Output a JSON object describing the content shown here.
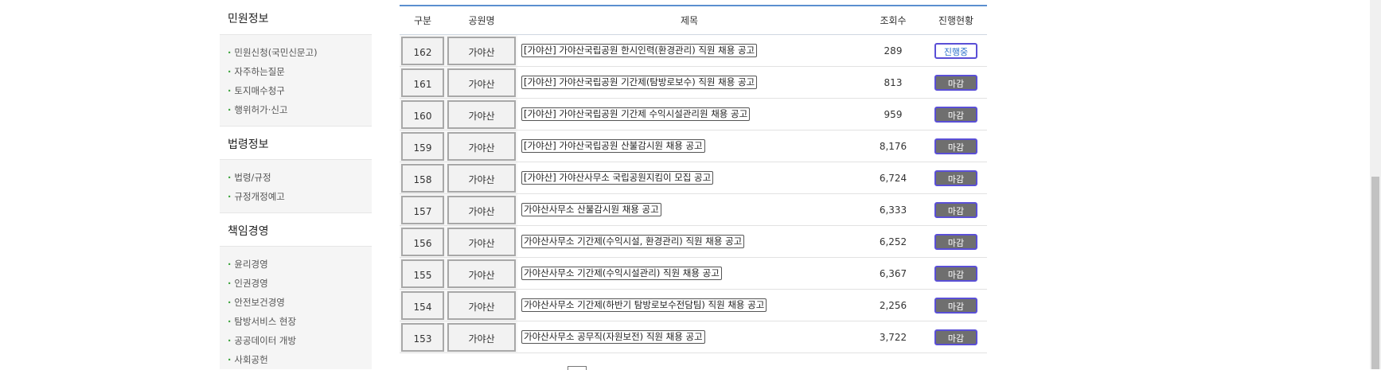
{
  "sidebar": {
    "sections": [
      {
        "title": "민원정보",
        "items": [
          "민원신청(국민신문고)",
          "자주하는질문",
          "토지매수청구",
          "행위허가·신고"
        ]
      },
      {
        "title": "법령정보",
        "items": [
          "법령/규정",
          "규정개정예고"
        ]
      },
      {
        "title": "책임경영",
        "items": [
          "윤리경영",
          "인권경영",
          "안전보건경영",
          "탐방서비스 현장",
          "공공데이터 개방",
          "사회공헌"
        ]
      }
    ]
  },
  "table": {
    "headers": [
      "구분",
      "공원명",
      "제목",
      "조회수",
      "진행현황"
    ],
    "rows": [
      {
        "no": "162",
        "park": "가야산",
        "title": "[가야산] 가야산국립공원 한시인력(환경관리) 직원 채용 공고",
        "views": "289",
        "status": "진행중"
      },
      {
        "no": "161",
        "park": "가야산",
        "title": "[가야산] 가야산국립공원 기간제(탐방로보수) 직원 채용 공고",
        "views": "813",
        "status": "마감"
      },
      {
        "no": "160",
        "park": "가야산",
        "title": "[가야산] 가야산국립공원 기간제 수익시설관리원 채용 공고",
        "views": "959",
        "status": "마감"
      },
      {
        "no": "159",
        "park": "가야산",
        "title": "[가야산] 가야산국립공원 산불감시원 채용 공고",
        "views": "8,176",
        "status": "마감"
      },
      {
        "no": "158",
        "park": "가야산",
        "title": "[가야산] 가야산사무소 국립공원지킴이 모집 공고",
        "views": "6,724",
        "status": "마감"
      },
      {
        "no": "157",
        "park": "가야산",
        "title": "가야산사무소 산불감시원 채용 공고",
        "views": "6,333",
        "status": "마감"
      },
      {
        "no": "156",
        "park": "가야산",
        "title": "가야산사무소 기간제(수익시설, 환경관리) 직원 채용 공고",
        "views": "6,252",
        "status": "마감"
      },
      {
        "no": "155",
        "park": "가야산",
        "title": "가야산사무소 기간제(수익시설관리) 직원 채용 공고",
        "views": "6,367",
        "status": "마감"
      },
      {
        "no": "154",
        "park": "가야산",
        "title": "가야산사무소 기간제(하반기 탐방로보수전담팀) 직원 채용 공고",
        "views": "2,256",
        "status": "마감"
      },
      {
        "no": "153",
        "park": "가야산",
        "title": "가야산사무소 공무직(자원보전) 직원 채용 공고",
        "views": "3,722",
        "status": "마감"
      }
    ]
  },
  "colors": {
    "accent": "#5b8fd0",
    "button_border": "#5a4fd6",
    "closed_bg": "#6f6f6f",
    "open_text": "#2a6fc9",
    "bullet": "#3aa23a"
  }
}
